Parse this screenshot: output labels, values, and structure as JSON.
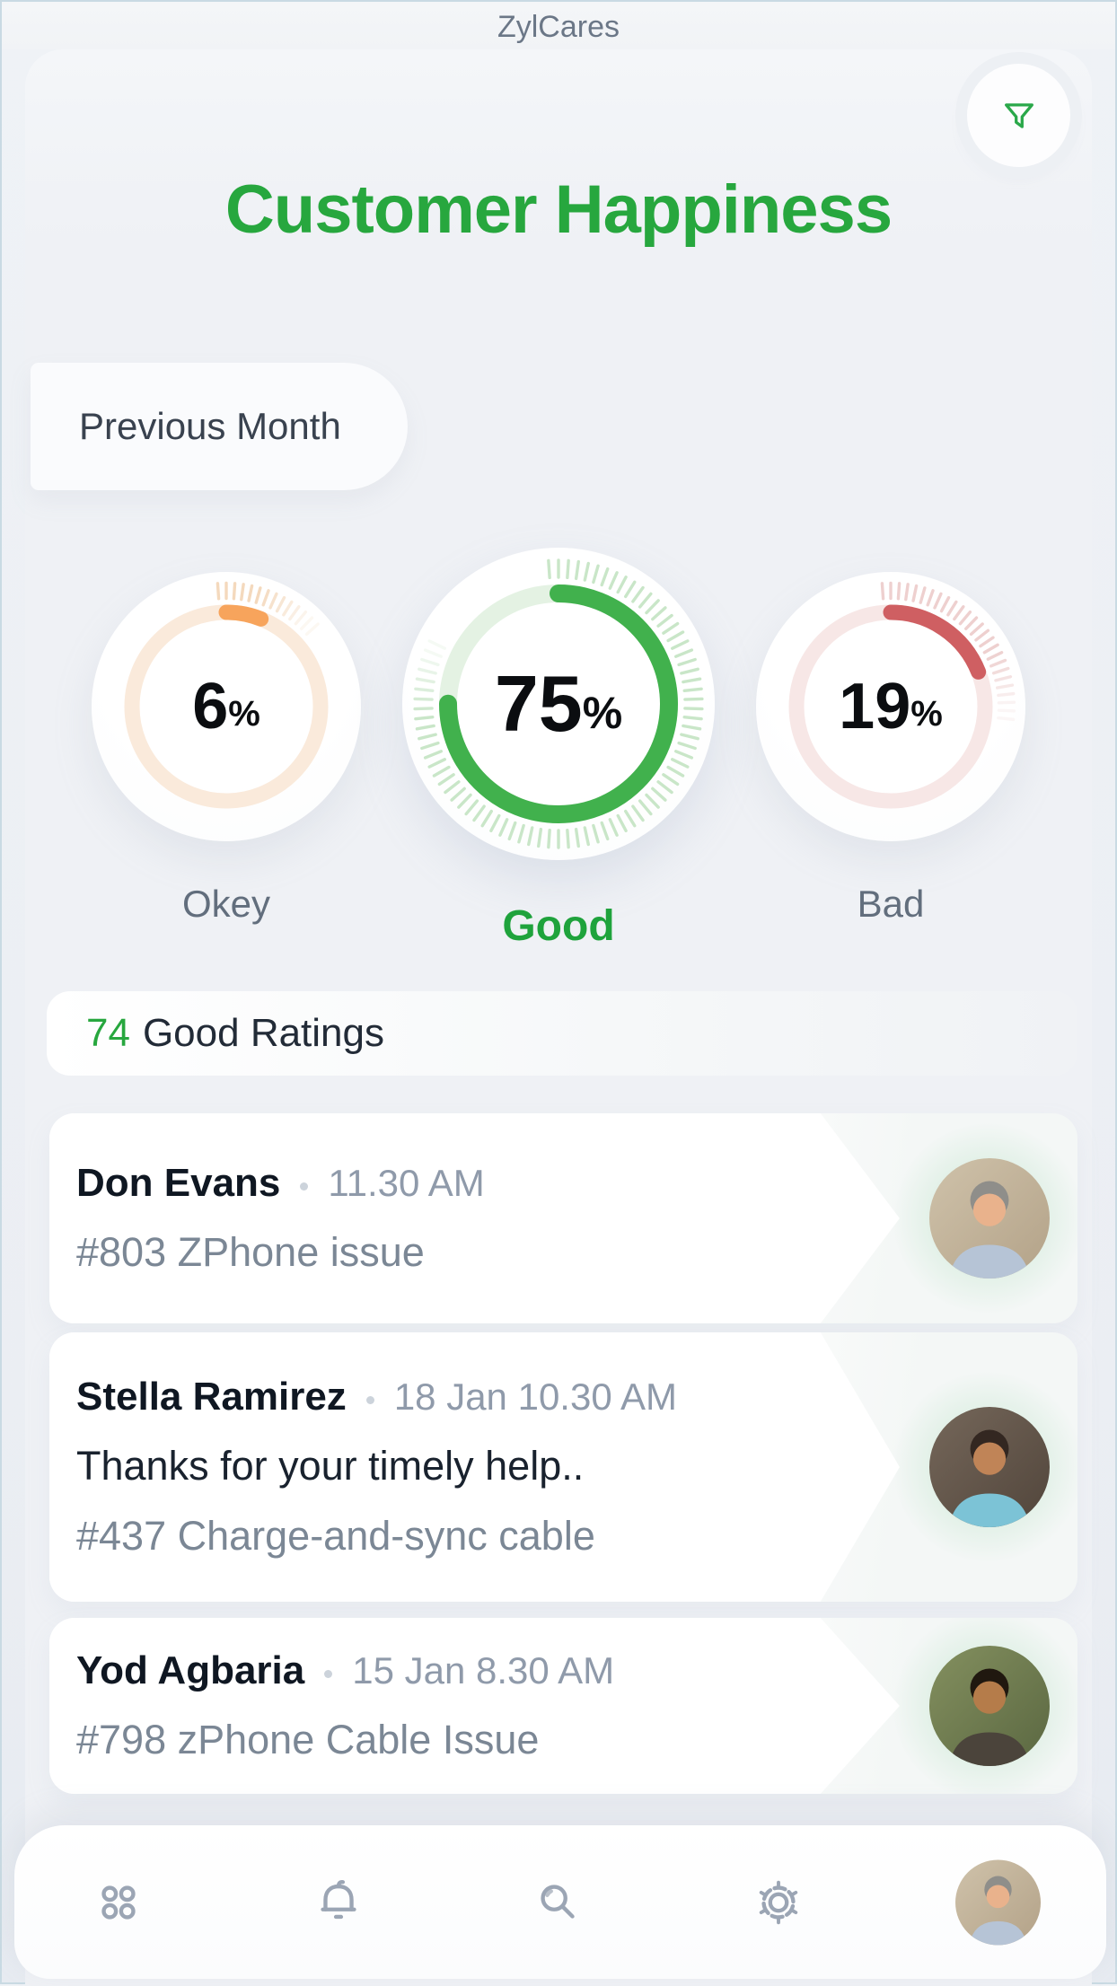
{
  "app": {
    "title": "ZylCares"
  },
  "header": {
    "title": "Customer Happiness",
    "title_color": "#27a73e",
    "period_label": "Previous Month"
  },
  "gauges": [
    {
      "value": "6",
      "unit": "%",
      "label": "Okey",
      "color": "#f7a45c",
      "track": "#faeadb",
      "tick": "#f4d9bd",
      "label_color": "#626e7d",
      "emphasis": false
    },
    {
      "value": "75",
      "unit": "%",
      "label": "Good",
      "color": "#41b14d",
      "track": "#e4f2e3",
      "tick": "#c9e6c8",
      "label_color": "#1fa33c",
      "emphasis": true
    },
    {
      "value": "19",
      "unit": "%",
      "label": "Bad",
      "color": "#cf5f62",
      "track": "#f7e7e6",
      "tick": "#eed0cf",
      "label_color": "#626e7d",
      "emphasis": false
    }
  ],
  "ratings_header": {
    "count": "74",
    "label": "Good Ratings",
    "count_color": "#27a73e"
  },
  "ratings": [
    {
      "name": "Don Evans",
      "time": "11.30 AM",
      "message": "",
      "ticket": "#803 ZPhone issue",
      "avatar": {
        "bg1": "#cfc2aa",
        "bg2": "#b3a288",
        "skin": "#e9b28c",
        "hair": "#8f8e8a",
        "shirt": "#b6c4d6"
      }
    },
    {
      "name": "Stella Ramirez",
      "time": "18 Jan 10.30 AM",
      "message": "Thanks for your timely help..",
      "ticket": "#437 Charge-and-sync cable",
      "avatar": {
        "bg1": "#75675a",
        "bg2": "#51453b",
        "skin": "#c08457",
        "hair": "#332721",
        "shirt": "#7cc3d6"
      }
    },
    {
      "name": "Yod Agbaria",
      "time": "15 Jan 8.30 AM",
      "message": "",
      "ticket": "#798 zPhone Cable Issue",
      "avatar": {
        "bg1": "#84905f",
        "bg2": "#5a6741",
        "skin": "#b57c4a",
        "hair": "#20180f",
        "shirt": "#4b443b"
      }
    }
  ],
  "nav": {
    "icon_color": "#9ba5b4",
    "items": [
      {
        "id": "dashboard",
        "icon": "grid-icon"
      },
      {
        "id": "notifications",
        "icon": "bell-icon"
      },
      {
        "id": "search",
        "icon": "search-icon"
      },
      {
        "id": "settings",
        "icon": "gear-icon"
      },
      {
        "id": "profile",
        "icon": "avatar"
      }
    ],
    "profile_avatar": {
      "bg1": "#cfc2aa",
      "bg2": "#b3a288",
      "skin": "#e9b28c",
      "hair": "#8f8e8a",
      "shirt": "#b6c4d6"
    }
  },
  "colors": {
    "accent_green": "#27a73e",
    "filter_icon_green": "#2aa84a"
  }
}
